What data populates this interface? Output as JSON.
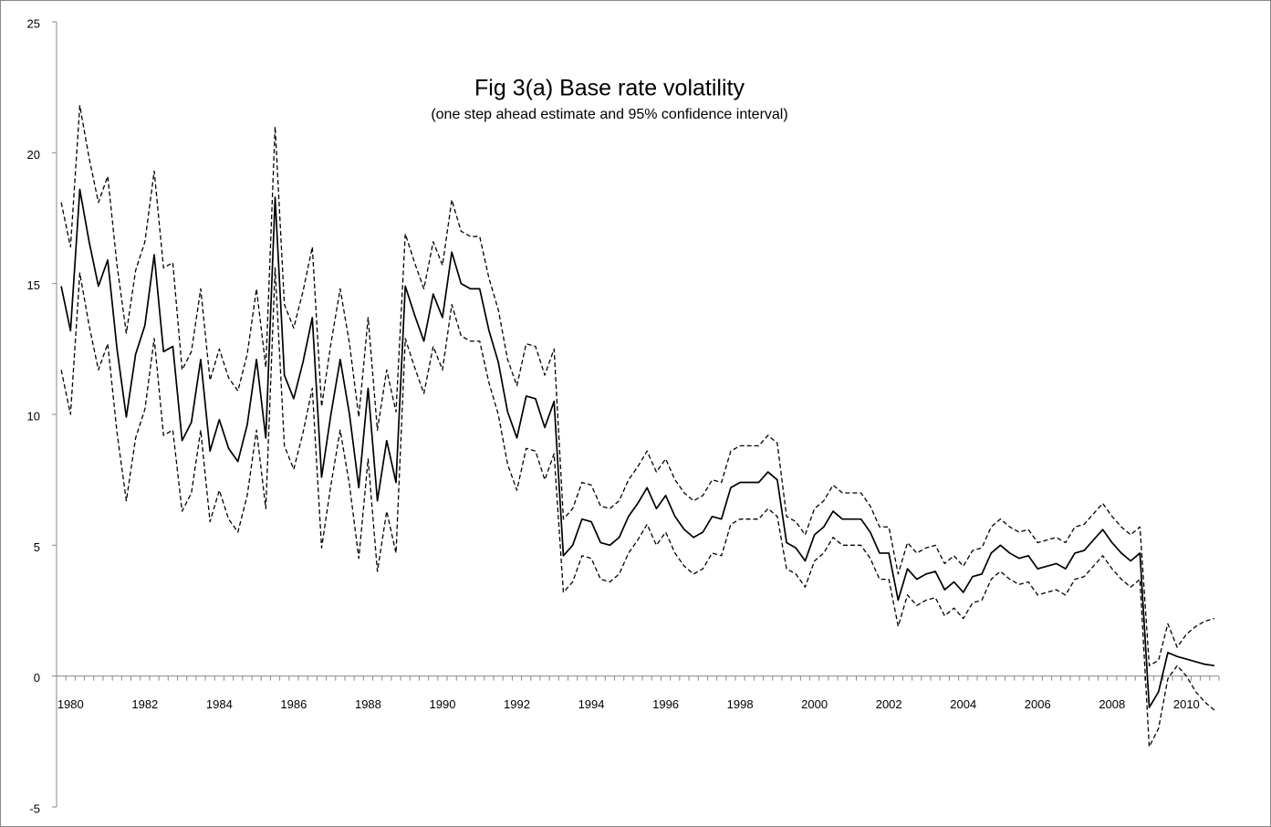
{
  "chart_data": {
    "type": "line",
    "title": "Fig 3(a)  Base rate volatility",
    "subtitle": "(one step ahead estimate and 95% confidence interval)",
    "categories": [
      null,
      "1980",
      null,
      null,
      null,
      null,
      null,
      null,
      null,
      "1982",
      null,
      null,
      null,
      null,
      null,
      null,
      null,
      "1984",
      null,
      null,
      null,
      null,
      null,
      null,
      null,
      "1986",
      null,
      null,
      null,
      null,
      null,
      null,
      null,
      "1988",
      null,
      null,
      null,
      null,
      null,
      null,
      null,
      "1990",
      null,
      null,
      null,
      null,
      null,
      null,
      null,
      "1992",
      null,
      null,
      null,
      null,
      null,
      null,
      null,
      "1994",
      null,
      null,
      null,
      null,
      null,
      null,
      null,
      "1996",
      null,
      null,
      null,
      null,
      null,
      null,
      null,
      "1998",
      null,
      null,
      null,
      null,
      null,
      null,
      null,
      "2000",
      null,
      null,
      null,
      null,
      null,
      null,
      null,
      "2002",
      null,
      null,
      null,
      null,
      null,
      null,
      null,
      "2004",
      null,
      null,
      null,
      null,
      null,
      null,
      null,
      "2006",
      null,
      null,
      null,
      null,
      null,
      null,
      null,
      "2008",
      null,
      null,
      null,
      null,
      null,
      null,
      null,
      "2010",
      null,
      null,
      null
    ],
    "series": [
      {
        "color": "#000000",
        "dashed": false,
        "values": [
          14.9,
          13.2,
          18.6,
          16.6,
          14.9,
          15.9,
          12.5,
          9.9,
          12.3,
          13.4,
          16.1,
          12.4,
          12.6,
          9.0,
          9.7,
          12.1,
          8.6,
          9.8,
          8.7,
          8.2,
          9.6,
          12.1,
          9.1,
          18.3,
          11.5,
          10.6,
          12.0,
          13.7,
          7.6,
          10.0,
          12.1,
          10.0,
          7.2,
          11.0,
          6.7,
          9.0,
          7.4,
          14.9,
          13.8,
          12.8,
          14.6,
          13.7,
          16.2,
          15.0,
          14.8,
          14.8,
          13.2,
          12.0,
          10.1,
          9.1,
          10.7,
          10.6,
          9.5,
          10.5,
          4.6,
          5.0,
          6.0,
          5.9,
          5.1,
          5.0,
          5.3,
          6.1,
          6.6,
          7.2,
          6.4,
          6.9,
          6.1,
          5.6,
          5.3,
          5.5,
          6.1,
          6.0,
          7.2,
          7.4,
          7.4,
          7.4,
          7.8,
          7.5,
          5.1,
          4.9,
          4.4,
          5.4,
          5.7,
          6.3,
          6.0,
          6.0,
          6.0,
          5.5,
          4.7,
          4.7,
          2.9,
          4.1,
          3.7,
          3.9,
          4.0,
          3.3,
          3.6,
          3.2,
          3.8,
          3.9,
          4.7,
          5.0,
          4.7,
          4.5,
          4.6,
          4.1,
          4.2,
          4.3,
          4.1,
          4.7,
          4.8,
          5.2,
          5.6,
          5.1,
          4.7,
          4.4,
          4.7,
          -1.2,
          -0.6,
          0.9,
          0.75,
          0.65,
          0.55,
          0.45,
          0.4
        ]
      },
      {
        "color": "#000000",
        "dashed": true,
        "values": [
          18.1,
          16.4,
          21.8,
          19.8,
          18.1,
          19.1,
          15.7,
          13.1,
          15.5,
          16.6,
          19.3,
          15.6,
          15.8,
          11.7,
          12.4,
          14.8,
          11.3,
          12.5,
          11.4,
          10.9,
          12.3,
          14.8,
          11.8,
          21.0,
          14.2,
          13.3,
          14.7,
          16.4,
          10.3,
          12.7,
          14.8,
          12.7,
          9.9,
          13.7,
          9.4,
          11.7,
          10.1,
          16.9,
          15.8,
          14.8,
          16.6,
          15.7,
          18.2,
          17.0,
          16.8,
          16.8,
          15.2,
          14.0,
          12.1,
          11.1,
          12.7,
          12.6,
          11.5,
          12.5,
          6.0,
          6.4,
          7.4,
          7.3,
          6.5,
          6.4,
          6.7,
          7.5,
          8.0,
          8.6,
          7.8,
          8.3,
          7.5,
          7.0,
          6.7,
          6.9,
          7.5,
          7.4,
          8.6,
          8.8,
          8.8,
          8.8,
          9.2,
          8.9,
          6.1,
          5.9,
          5.4,
          6.4,
          6.7,
          7.3,
          7.0,
          7.0,
          7.0,
          6.5,
          5.7,
          5.7,
          3.9,
          5.1,
          4.7,
          4.9,
          5.0,
          4.3,
          4.6,
          4.2,
          4.8,
          4.9,
          5.7,
          6.0,
          5.7,
          5.5,
          5.6,
          5.1,
          5.2,
          5.3,
          5.1,
          5.7,
          5.8,
          6.2,
          6.6,
          6.1,
          5.7,
          5.4,
          5.7,
          0.4,
          0.6,
          2.0,
          1.1,
          1.6,
          1.9,
          2.1,
          2.2
        ]
      },
      {
        "color": "#000000",
        "dashed": true,
        "values": [
          11.7,
          10.0,
          15.4,
          13.4,
          11.7,
          12.7,
          9.3,
          6.7,
          9.1,
          10.2,
          12.9,
          9.2,
          9.4,
          6.3,
          7.0,
          9.4,
          5.9,
          7.1,
          6.0,
          5.5,
          6.9,
          9.4,
          6.4,
          15.6,
          8.8,
          7.9,
          9.3,
          11.0,
          4.9,
          7.3,
          9.4,
          7.3,
          4.5,
          8.3,
          4.0,
          6.3,
          4.7,
          12.9,
          11.8,
          10.8,
          12.6,
          11.7,
          14.2,
          13.0,
          12.8,
          12.8,
          11.2,
          10.0,
          8.1,
          7.1,
          8.7,
          8.6,
          7.5,
          8.5,
          3.2,
          3.6,
          4.6,
          4.5,
          3.7,
          3.6,
          3.9,
          4.7,
          5.2,
          5.8,
          5.0,
          5.5,
          4.7,
          4.2,
          3.9,
          4.1,
          4.7,
          4.6,
          5.8,
          6.0,
          6.0,
          6.0,
          6.4,
          6.1,
          4.1,
          3.9,
          3.4,
          4.4,
          4.7,
          5.3,
          5.0,
          5.0,
          5.0,
          4.5,
          3.7,
          3.7,
          1.9,
          3.1,
          2.7,
          2.9,
          3.0,
          2.3,
          2.6,
          2.2,
          2.8,
          2.9,
          3.7,
          4.0,
          3.7,
          3.5,
          3.6,
          3.1,
          3.2,
          3.3,
          3.1,
          3.7,
          3.8,
          4.2,
          4.6,
          4.1,
          3.7,
          3.4,
          3.7,
          -2.7,
          -2.0,
          -0.1,
          0.4,
          0.0,
          -0.6,
          -1.0,
          -1.3
        ]
      }
    ],
    "ylim": [
      -5,
      25
    ],
    "yticks": [
      -5,
      0,
      5,
      10,
      15,
      20,
      25
    ],
    "grid": false
  }
}
